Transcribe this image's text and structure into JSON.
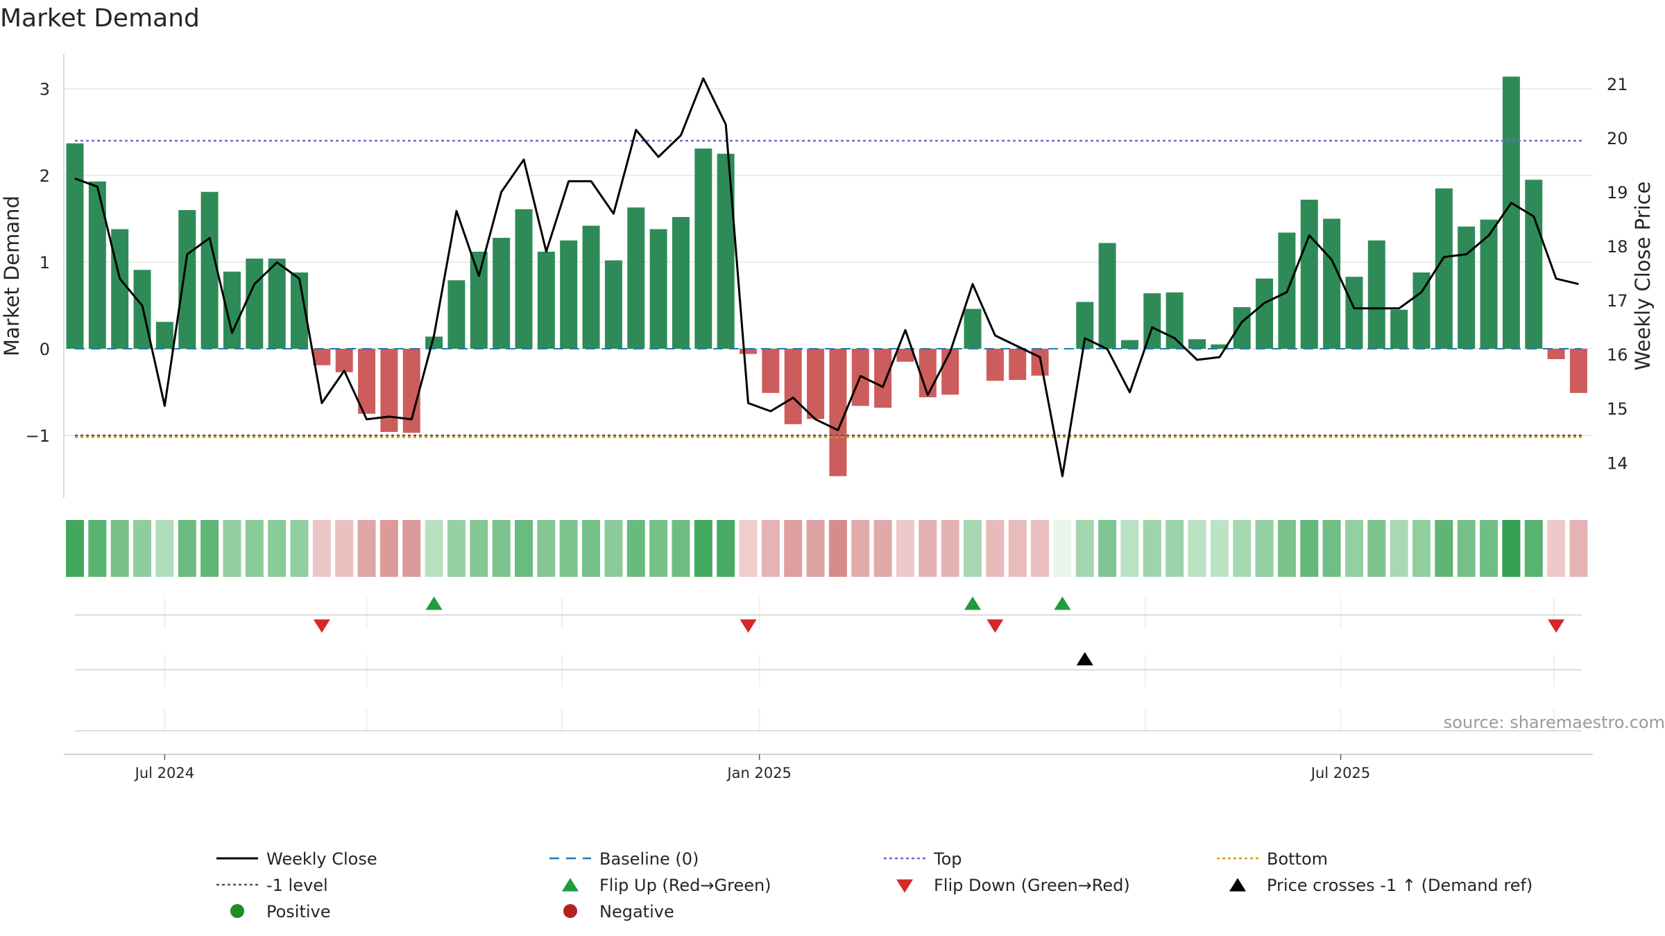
{
  "colors": {
    "positive_bar": "#2e8b57",
    "negative_bar": "#cd5c5c",
    "price_line": "#000000",
    "baseline": "#1f77b4",
    "top": "#6a6ad8",
    "bottom": "#d4a017",
    "minus_one": "#555555",
    "flip_up": "#1e9c3e",
    "flip_down": "#d62728",
    "cross": "#000000",
    "grid": "#e6e6e6"
  },
  "chart_data": {
    "type": "bar+line",
    "title": "Market Demand",
    "ylabel_left": "Market Demand",
    "ylabel_right": "Weekly Close Price",
    "left_ylim": [
      -1.72,
      3.4
    ],
    "right_ylim": [
      13.35,
      21.55
    ],
    "left_ticks": [
      {
        "v": 3,
        "label": "3"
      },
      {
        "v": 2,
        "label": "2"
      },
      {
        "v": 1,
        "label": "1"
      },
      {
        "v": 0,
        "label": "0"
      },
      {
        "v": -1,
        "label": "−1"
      }
    ],
    "right_ticks": [
      {
        "v": 21,
        "label": "21"
      },
      {
        "v": 20,
        "label": "20"
      },
      {
        "v": 19,
        "label": "19"
      },
      {
        "v": 18,
        "label": "18"
      },
      {
        "v": 17,
        "label": "17"
      },
      {
        "v": 16,
        "label": "16"
      },
      {
        "v": 15,
        "label": "15"
      },
      {
        "v": 14,
        "label": "14"
      }
    ],
    "x_ticks": [
      {
        "index": 4,
        "label": "Jul 2024"
      },
      {
        "index": 30.5,
        "label": "Jan 2025"
      },
      {
        "index": 56.4,
        "label": "Jul 2025"
      }
    ],
    "minor_gridlines_index": [
      13,
      21.7,
      47.7,
      65.9
    ],
    "demand": [
      2.37,
      1.93,
      1.38,
      0.91,
      0.31,
      1.6,
      1.81,
      0.89,
      1.04,
      1.04,
      0.88,
      -0.19,
      -0.27,
      -0.75,
      -0.96,
      -0.97,
      0.14,
      0.79,
      1.12,
      1.28,
      1.61,
      1.12,
      1.25,
      1.42,
      1.02,
      1.63,
      1.38,
      1.52,
      2.31,
      2.25,
      -0.06,
      -0.51,
      -0.87,
      -0.81,
      -1.47,
      -0.66,
      -0.68,
      -0.15,
      -0.56,
      -0.53,
      0.46,
      -0.37,
      -0.36,
      -0.31,
      0.0,
      0.54,
      1.22,
      0.1,
      0.64,
      0.65,
      0.11,
      0.05,
      0.48,
      0.81,
      1.34,
      1.72,
      1.5,
      0.83,
      1.25,
      0.45,
      0.88,
      1.85,
      1.41,
      1.49,
      3.14,
      1.95,
      -0.12,
      -0.51
    ],
    "close": [
      19.25,
      19.1,
      17.4,
      16.9,
      15.05,
      17.85,
      18.15,
      16.4,
      17.3,
      17.7,
      17.4,
      15.1,
      15.7,
      14.8,
      14.85,
      14.8,
      16.35,
      18.65,
      17.45,
      19.0,
      19.6,
      17.9,
      19.2,
      19.2,
      18.6,
      20.15,
      19.65,
      20.05,
      21.1,
      20.25,
      15.1,
      14.95,
      15.2,
      14.8,
      14.6,
      15.6,
      15.4,
      16.45,
      15.25,
      16.05,
      17.3,
      16.35,
      16.15,
      15.95,
      13.75,
      16.3,
      16.1,
      15.3,
      16.5,
      16.3,
      15.9,
      15.95,
      16.6,
      16.95,
      17.15,
      18.2,
      17.75,
      16.85,
      16.85,
      16.85,
      17.15,
      17.8,
      17.85,
      18.2,
      18.8,
      18.55,
      17.4,
      17.3
    ],
    "top_level": 2.4,
    "bottom_level": -1.02,
    "minus_one_level": -1.0,
    "heatmap": {
      "type": "heatmap",
      "row": "Market Demand strength",
      "uses": "demand"
    },
    "flip_up_indices": [
      16,
      40,
      44
    ],
    "flip_down_indices": [
      11,
      30,
      41,
      66
    ],
    "price_cross_indices": [
      45
    ],
    "legend": [
      {
        "label": "Weekly Close",
        "kind": "line-solid",
        "color": "#000000"
      },
      {
        "label": "Baseline (0)",
        "kind": "line-dash",
        "color": "#1f77b4"
      },
      {
        "label": "Top",
        "kind": "line-dot",
        "color": "#6a6ad8"
      },
      {
        "label": "Bottom",
        "kind": "line-dot",
        "color": "#d4a017"
      },
      {
        "label": "-1 level",
        "kind": "line-dot",
        "color": "#555555"
      },
      {
        "label": "Flip Up (Red→Green)",
        "kind": "tri-up",
        "color": "#1e9c3e"
      },
      {
        "label": "Flip Down (Green→Red)",
        "kind": "tri-down",
        "color": "#d62728"
      },
      {
        "label": "Price crosses -1 ↑ (Demand ref)",
        "kind": "tri-up",
        "color": "#000000"
      },
      {
        "label": "Positive",
        "kind": "dot",
        "color": "#228b22"
      },
      {
        "label": "Negative",
        "kind": "dot",
        "color": "#b22222"
      }
    ],
    "source": "source: sharemaestro.com"
  }
}
